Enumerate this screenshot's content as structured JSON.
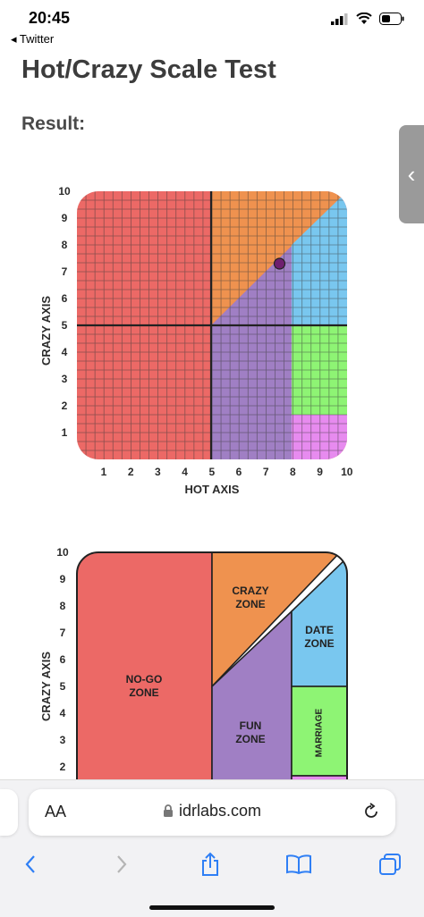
{
  "status": {
    "time": "20:45",
    "back_app": "◂ Twitter"
  },
  "page": {
    "title": "Hot/Crazy Scale Test",
    "result_label": "Result:"
  },
  "chart1": {
    "ylabel": "CRAZY AXIS",
    "xlabel": "HOT AXIS",
    "y_ticks": [
      "1",
      "2",
      "3",
      "4",
      "5",
      "6",
      "7",
      "8",
      "9",
      "10"
    ],
    "x_ticks": [
      "1",
      "2",
      "3",
      "4",
      "5",
      "6",
      "7",
      "8",
      "9",
      "10"
    ]
  },
  "chart2": {
    "ylabel": "CRAZY AXIS",
    "y_ticks": [
      "2",
      "3",
      "4",
      "5",
      "6",
      "7",
      "8",
      "9",
      "10"
    ],
    "zones": {
      "nogo": "NO-GO ZONE",
      "crazy": "CRAZY ZONE",
      "fun": "FUN ZONE",
      "date": "DATE ZONE",
      "marriage": "MARRIAGE"
    }
  },
  "colors": {
    "nogo": "#ec6966",
    "crazy": "#ef924f",
    "fun": "#a07fc4",
    "date": "#79c7ef",
    "marriage_green": "#8ef474",
    "pink": "#e78bef",
    "marker": "#6e1f6f"
  },
  "chart_data": {
    "type": "scatter",
    "x": [
      7.5
    ],
    "y": [
      7.3
    ],
    "xlabel": "HOT AXIS",
    "ylabel": "CRAZY AXIS",
    "xlim": [
      0,
      10
    ],
    "ylim": [
      0,
      10
    ],
    "grid": true
  },
  "browser": {
    "aa_label": "AA",
    "url": "idrlabs.com"
  }
}
